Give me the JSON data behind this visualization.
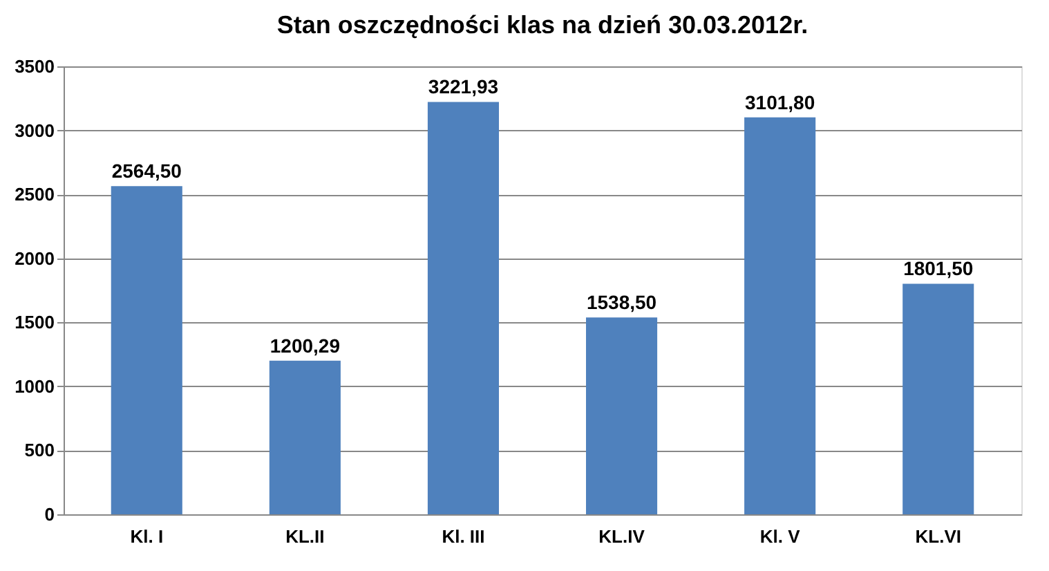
{
  "chart_data": {
    "type": "bar",
    "title": "Stan oszczędności klas na dzień 30.03.2012r.",
    "categories": [
      "Kl. I",
      "KL.II",
      "Kl. III",
      "KL.IV",
      "Kl. V",
      "KL.VI"
    ],
    "values": [
      2564.5,
      1200.29,
      3221.93,
      1538.5,
      3101.8,
      1801.5
    ],
    "value_labels": [
      "2564,50",
      "1200,29",
      "3221,93",
      "1538,50",
      "3101,80",
      "1801,50"
    ],
    "color": "#4f81bd",
    "ylim": [
      0,
      3500
    ],
    "yticks": [
      0,
      500,
      1000,
      1500,
      2000,
      2500,
      3000,
      3500
    ],
    "grid": "y"
  }
}
